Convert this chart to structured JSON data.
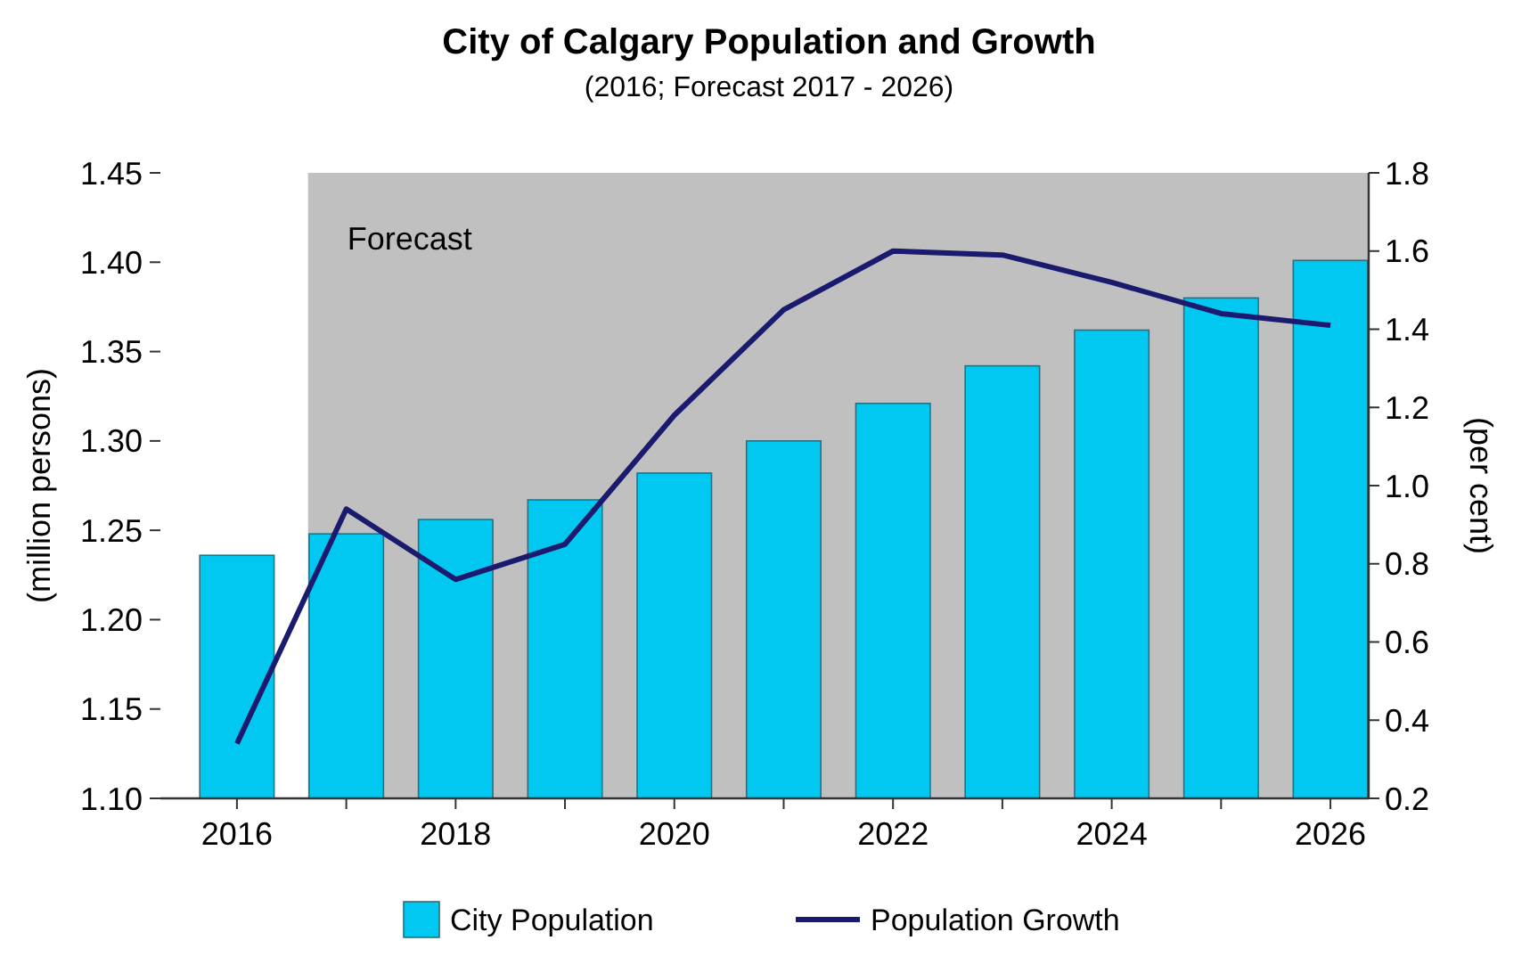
{
  "chart_data": {
    "type": "bar",
    "title": "City of Calgary Population and Growth",
    "subtitle": "(2016; Forecast 2017 - 2026)",
    "ylabel": "(million persons)",
    "y2label": "(per cent)",
    "x": [
      2016,
      2017,
      2018,
      2019,
      2020,
      2021,
      2022,
      2023,
      2024,
      2025,
      2026
    ],
    "series": [
      {
        "name": "City Population",
        "color": "#00c8f0",
        "values": [
          1.236,
          1.248,
          1.256,
          1.267,
          1.282,
          1.3,
          1.321,
          1.342,
          1.362,
          1.38,
          1.401
        ]
      },
      {
        "name": "Population Growth",
        "type": "line",
        "axis": "y2",
        "color": "#1a1a6e",
        "values": [
          0.34,
          0.94,
          0.76,
          0.85,
          1.18,
          1.45,
          1.6,
          1.59,
          1.52,
          1.44,
          1.41
        ]
      }
    ],
    "xlim": [
      2015.3,
      2026.35
    ],
    "xticks": [
      2016,
      {
        "value": 2017,
        "label": null
      },
      2018,
      {
        "value": 2019,
        "label": null
      },
      2020,
      {
        "value": 2021,
        "label": null
      },
      2022,
      {
        "value": 2023,
        "label": null
      },
      2024,
      {
        "value": 2025,
        "label": null
      },
      2026
    ],
    "ylim": [
      1.1,
      1.45
    ],
    "yticks": [
      {
        "value": 1.1,
        "label": "1.10"
      },
      1.15,
      {
        "value": 1.2,
        "label": "1.20"
      },
      1.25,
      {
        "value": 1.3,
        "label": "1.30"
      },
      1.35,
      {
        "value": 1.4,
        "label": "1.40"
      },
      1.45
    ],
    "y2lim": [
      0.2,
      1.8
    ],
    "y2ticks": [
      0.2,
      0.4,
      0.6,
      0.8,
      {
        "value": 1,
        "label": "1.0"
      },
      1.2,
      1.4,
      1.6,
      1.8
    ],
    "bands": [
      {
        "axis": "x",
        "from": 2016.65,
        "to": 2026.35,
        "label": "Forecast",
        "color": "#c0c0c0"
      }
    ],
    "grid": false,
    "legend": "bottom",
    "marker": "none",
    "line_style": "solid"
  }
}
